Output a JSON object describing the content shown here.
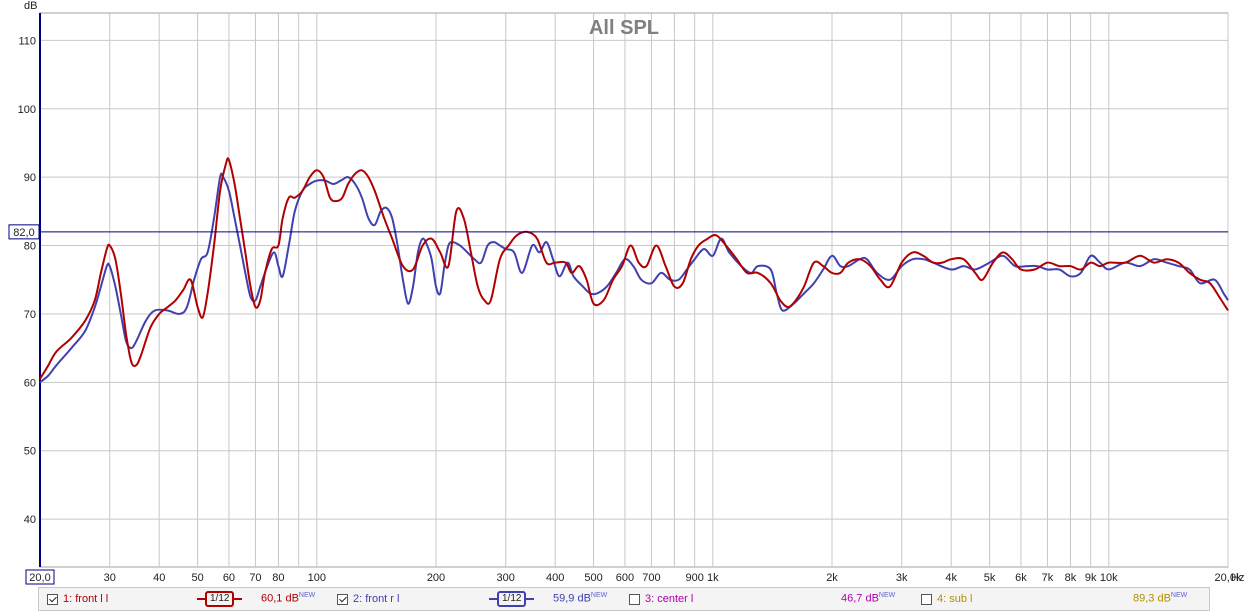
{
  "chart_data": {
    "type": "line",
    "title": "All SPL",
    "ylabel": "dB",
    "xlabel": "Hz",
    "xscale": "log",
    "xlim": [
      20,
      20000
    ],
    "ylim": [
      33,
      114
    ],
    "y_ticks": [
      40,
      50,
      60,
      70,
      80,
      90,
      100,
      110
    ],
    "x_ticks": [
      {
        "v": 30,
        "label": "30"
      },
      {
        "v": 40,
        "label": "40"
      },
      {
        "v": 50,
        "label": "50"
      },
      {
        "v": 60,
        "label": "60"
      },
      {
        "v": 70,
        "label": "70"
      },
      {
        "v": 80,
        "label": "80"
      },
      {
        "v": 100,
        "label": "100"
      },
      {
        "v": 200,
        "label": "200"
      },
      {
        "v": 300,
        "label": "300"
      },
      {
        "v": 400,
        "label": "400"
      },
      {
        "v": 500,
        "label": "500"
      },
      {
        "v": 600,
        "label": "600"
      },
      {
        "v": 700,
        "label": "700"
      },
      {
        "v": 900,
        "label": "900"
      },
      {
        "v": 1000,
        "label": "1k"
      },
      {
        "v": 2000,
        "label": "2k"
      },
      {
        "v": 3000,
        "label": "3k"
      },
      {
        "v": 4000,
        "label": "4k"
      },
      {
        "v": 5000,
        "label": "5k"
      },
      {
        "v": 6000,
        "label": "6k"
      },
      {
        "v": 7000,
        "label": "7k"
      },
      {
        "v": 8000,
        "label": "8k"
      },
      {
        "v": 9000,
        "label": "9k"
      },
      {
        "v": 10000,
        "label": "10k"
      },
      {
        "v": 20000,
        "label": "20,0k"
      }
    ],
    "x_start_label": "20,0",
    "reference_line": {
      "value": 82.0,
      "label": "82,0",
      "color": "#000080"
    },
    "grid": true,
    "series": [
      {
        "name": "1: front l l",
        "color": "#b00000",
        "points": [
          [
            20,
            60.5
          ],
          [
            21,
            62.5
          ],
          [
            22,
            64.5
          ],
          [
            24,
            66.5
          ],
          [
            26,
            69
          ],
          [
            27.5,
            72
          ],
          [
            28.5,
            76
          ],
          [
            29.5,
            79.5
          ],
          [
            30,
            80
          ],
          [
            31,
            78
          ],
          [
            32,
            73
          ],
          [
            33,
            67
          ],
          [
            34,
            63
          ],
          [
            35,
            62.5
          ],
          [
            36,
            64
          ],
          [
            38,
            68
          ],
          [
            40,
            70
          ],
          [
            42,
            71
          ],
          [
            44,
            72
          ],
          [
            46,
            73.5
          ],
          [
            48,
            75
          ],
          [
            50,
            71
          ],
          [
            51.5,
            69.5
          ],
          [
            53,
            73
          ],
          [
            55,
            80
          ],
          [
            57,
            88
          ],
          [
            59,
            92
          ],
          [
            60,
            92.5
          ],
          [
            62,
            89
          ],
          [
            64,
            84
          ],
          [
            66,
            79
          ],
          [
            68,
            74
          ],
          [
            70,
            71
          ],
          [
            72,
            72
          ],
          [
            74,
            76
          ],
          [
            77,
            79.5
          ],
          [
            80,
            80
          ],
          [
            82,
            84
          ],
          [
            85,
            87
          ],
          [
            88,
            87
          ],
          [
            92,
            88
          ],
          [
            96,
            90
          ],
          [
            100,
            91
          ],
          [
            104,
            90
          ],
          [
            108,
            87
          ],
          [
            112,
            86.5
          ],
          [
            116,
            87
          ],
          [
            120,
            89
          ],
          [
            125,
            90.5
          ],
          [
            130,
            91
          ],
          [
            135,
            90
          ],
          [
            140,
            88
          ],
          [
            148,
            84
          ],
          [
            155,
            81
          ],
          [
            165,
            77
          ],
          [
            175,
            76.5
          ],
          [
            185,
            80
          ],
          [
            195,
            81
          ],
          [
            205,
            79
          ],
          [
            215,
            77
          ],
          [
            225,
            85
          ],
          [
            235,
            84
          ],
          [
            245,
            79
          ],
          [
            255,
            74
          ],
          [
            265,
            72
          ],
          [
            275,
            72
          ],
          [
            290,
            78
          ],
          [
            305,
            80
          ],
          [
            320,
            81.5
          ],
          [
            340,
            82
          ],
          [
            360,
            81
          ],
          [
            380,
            77.5
          ],
          [
            400,
            77.5
          ],
          [
            425,
            77.5
          ],
          [
            440,
            76
          ],
          [
            460,
            77
          ],
          [
            480,
            75
          ],
          [
            500,
            71.5
          ],
          [
            530,
            72
          ],
          [
            560,
            75
          ],
          [
            590,
            77
          ],
          [
            620,
            80
          ],
          [
            650,
            77.5
          ],
          [
            680,
            77
          ],
          [
            720,
            80
          ],
          [
            760,
            77
          ],
          [
            800,
            74
          ],
          [
            840,
            74.5
          ],
          [
            880,
            78
          ],
          [
            920,
            80
          ],
          [
            970,
            81
          ],
          [
            1020,
            81.5
          ],
          [
            1080,
            80
          ],
          [
            1150,
            78
          ],
          [
            1220,
            76
          ],
          [
            1300,
            76
          ],
          [
            1400,
            74.5
          ],
          [
            1480,
            72
          ],
          [
            1550,
            71
          ],
          [
            1620,
            72
          ],
          [
            1700,
            74
          ],
          [
            1800,
            77.5
          ],
          [
            1900,
            77
          ],
          [
            2000,
            76
          ],
          [
            2100,
            76
          ],
          [
            2200,
            77.5
          ],
          [
            2350,
            78
          ],
          [
            2500,
            77
          ],
          [
            2650,
            75
          ],
          [
            2800,
            74
          ],
          [
            3000,
            77.5
          ],
          [
            3200,
            79
          ],
          [
            3400,
            78.5
          ],
          [
            3600,
            77.5
          ],
          [
            3800,
            77.5
          ],
          [
            4000,
            78
          ],
          [
            4300,
            78
          ],
          [
            4600,
            76
          ],
          [
            4800,
            75
          ],
          [
            5100,
            77.5
          ],
          [
            5400,
            79
          ],
          [
            5700,
            78
          ],
          [
            6000,
            76.5
          ],
          [
            6500,
            76.5
          ],
          [
            7000,
            77.5
          ],
          [
            7500,
            77
          ],
          [
            8000,
            77
          ],
          [
            8500,
            76.5
          ],
          [
            9000,
            77.5
          ],
          [
            9500,
            77
          ],
          [
            10000,
            77.5
          ],
          [
            11000,
            77.5
          ],
          [
            12000,
            78.5
          ],
          [
            13000,
            77.5
          ],
          [
            14000,
            78
          ],
          [
            15000,
            77.5
          ],
          [
            16000,
            76
          ],
          [
            17000,
            75
          ],
          [
            18000,
            74.5
          ],
          [
            19000,
            72.5
          ],
          [
            20000,
            70.5
          ]
        ]
      },
      {
        "name": "2: front r l",
        "color": "#4040b0",
        "points": [
          [
            20,
            60
          ],
          [
            21,
            61
          ],
          [
            22,
            62.5
          ],
          [
            24,
            65
          ],
          [
            26,
            67.5
          ],
          [
            27.5,
            71
          ],
          [
            28.5,
            74
          ],
          [
            29.5,
            77
          ],
          [
            30,
            77
          ],
          [
            31,
            74
          ],
          [
            32,
            70
          ],
          [
            33,
            66
          ],
          [
            34,
            65
          ],
          [
            35,
            66
          ],
          [
            37,
            69
          ],
          [
            39,
            70.5
          ],
          [
            42,
            70.5
          ],
          [
            45,
            70
          ],
          [
            47,
            71
          ],
          [
            49,
            75
          ],
          [
            51,
            78
          ],
          [
            53,
            79
          ],
          [
            55,
            84
          ],
          [
            57,
            90
          ],
          [
            58,
            90
          ],
          [
            60,
            88
          ],
          [
            62,
            84
          ],
          [
            64,
            80
          ],
          [
            66,
            76
          ],
          [
            68,
            72.5
          ],
          [
            70,
            72
          ],
          [
            72,
            74
          ],
          [
            75,
            77
          ],
          [
            78,
            79
          ],
          [
            80,
            77
          ],
          [
            82,
            75.5
          ],
          [
            85,
            80
          ],
          [
            88,
            85
          ],
          [
            92,
            88
          ],
          [
            96,
            89
          ],
          [
            100,
            89.5
          ],
          [
            105,
            89.5
          ],
          [
            110,
            89
          ],
          [
            115,
            89.5
          ],
          [
            120,
            90
          ],
          [
            125,
            89
          ],
          [
            130,
            87
          ],
          [
            135,
            84
          ],
          [
            140,
            83
          ],
          [
            145,
            85
          ],
          [
            150,
            85.5
          ],
          [
            155,
            84
          ],
          [
            160,
            80
          ],
          [
            165,
            75
          ],
          [
            170,
            71.5
          ],
          [
            175,
            74
          ],
          [
            180,
            79
          ],
          [
            185,
            81
          ],
          [
            190,
            80
          ],
          [
            195,
            78
          ],
          [
            200,
            74
          ],
          [
            205,
            73
          ],
          [
            210,
            77
          ],
          [
            215,
            80
          ],
          [
            220,
            80.5
          ],
          [
            230,
            80
          ],
          [
            240,
            79
          ],
          [
            250,
            78
          ],
          [
            260,
            77.5
          ],
          [
            270,
            80
          ],
          [
            280,
            80.5
          ],
          [
            290,
            80
          ],
          [
            300,
            79.5
          ],
          [
            315,
            79
          ],
          [
            330,
            76
          ],
          [
            350,
            80
          ],
          [
            365,
            79
          ],
          [
            380,
            80.5
          ],
          [
            395,
            78
          ],
          [
            410,
            75.5
          ],
          [
            430,
            77.5
          ],
          [
            445,
            75.5
          ],
          [
            470,
            74
          ],
          [
            490,
            73
          ],
          [
            510,
            73
          ],
          [
            540,
            74
          ],
          [
            570,
            76
          ],
          [
            600,
            78
          ],
          [
            630,
            77
          ],
          [
            660,
            75
          ],
          [
            700,
            74.5
          ],
          [
            740,
            76
          ],
          [
            780,
            75
          ],
          [
            820,
            75
          ],
          [
            860,
            76.5
          ],
          [
            900,
            78
          ],
          [
            950,
            79.5
          ],
          [
            1000,
            78.5
          ],
          [
            1050,
            81
          ],
          [
            1100,
            79
          ],
          [
            1180,
            77
          ],
          [
            1250,
            76
          ],
          [
            1300,
            77
          ],
          [
            1400,
            76.5
          ],
          [
            1450,
            73
          ],
          [
            1500,
            70.5
          ],
          [
            1600,
            71.5
          ],
          [
            1700,
            73
          ],
          [
            1800,
            74.5
          ],
          [
            1900,
            76.5
          ],
          [
            2000,
            78.5
          ],
          [
            2100,
            77
          ],
          [
            2200,
            77
          ],
          [
            2350,
            78
          ],
          [
            2450,
            78
          ],
          [
            2600,
            76
          ],
          [
            2800,
            75
          ],
          [
            3000,
            77
          ],
          [
            3200,
            78
          ],
          [
            3400,
            78
          ],
          [
            3600,
            77.5
          ],
          [
            4000,
            76.5
          ],
          [
            4300,
            77
          ],
          [
            4600,
            76.5
          ],
          [
            5000,
            77.5
          ],
          [
            5400,
            78.5
          ],
          [
            5800,
            77
          ],
          [
            6200,
            77
          ],
          [
            6600,
            77
          ],
          [
            7000,
            76.5
          ],
          [
            7500,
            76.5
          ],
          [
            8000,
            75.5
          ],
          [
            8500,
            76
          ],
          [
            9000,
            78.5
          ],
          [
            9500,
            77.5
          ],
          [
            10000,
            76.5
          ],
          [
            11000,
            77.5
          ],
          [
            12000,
            77
          ],
          [
            13000,
            78
          ],
          [
            14000,
            77.5
          ],
          [
            15000,
            77
          ],
          [
            16000,
            76.5
          ],
          [
            17000,
            74.5
          ],
          [
            18500,
            75
          ],
          [
            19500,
            73
          ],
          [
            20000,
            72
          ]
        ]
      }
    ]
  },
  "legend": [
    {
      "label": "1: front l l",
      "checked": true,
      "color": "#b00000",
      "smoothing": "1/12",
      "db": "60,1 dB",
      "tag": "NEW"
    },
    {
      "label": "2: front r l",
      "checked": true,
      "color": "#4040b0",
      "smoothing": "1/12",
      "db": "59,9 dB",
      "tag": "NEW"
    },
    {
      "label": "3: center l",
      "checked": false,
      "color": "#b000b0",
      "db": "46,7 dB",
      "tag": "NEW"
    },
    {
      "label": "4: sub l",
      "checked": false,
      "color": "#b09000",
      "db": "89,3 dB",
      "tag": "NEW"
    }
  ],
  "colors": {
    "grid": "#c8c8c8",
    "axis": "#000080",
    "tag": "#6060d0"
  }
}
